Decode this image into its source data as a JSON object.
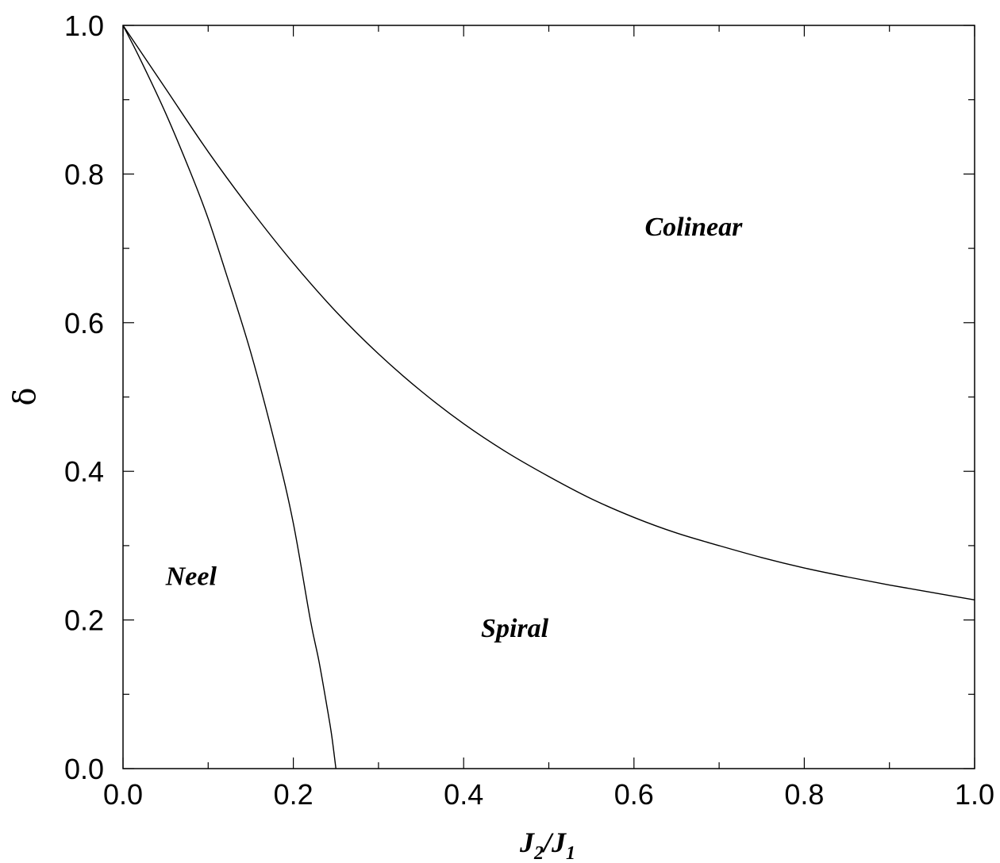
{
  "chart_data": {
    "type": "line",
    "xlabel": {
      "main": "J",
      "sub1": "2",
      "sep": "/J",
      "sub2": "1"
    },
    "ylabel": "δ",
    "xlim": [
      0.0,
      1.0
    ],
    "ylim": [
      0.0,
      1.0
    ],
    "x_ticks": [
      "0.0",
      "0.2",
      "0.4",
      "0.6",
      "0.8",
      "1.0"
    ],
    "y_ticks": [
      "0.0",
      "0.2",
      "0.4",
      "0.6",
      "0.8",
      "1.0"
    ],
    "minor_ticks_per_interval": 1,
    "grid": false,
    "series": [
      {
        "x": [
          0.0,
          0.02,
          0.05,
          0.08,
          0.1,
          0.12,
          0.15,
          0.18,
          0.2,
          0.22,
          0.23,
          0.24,
          0.245,
          0.25
        ],
        "y": [
          1.0,
          0.955,
          0.882,
          0.8,
          0.74,
          0.67,
          0.56,
          0.43,
          0.33,
          0.2,
          0.145,
          0.08,
          0.045,
          0.0
        ]
      },
      {
        "x": [
          0.0,
          0.05,
          0.1,
          0.15,
          0.2,
          0.25,
          0.3,
          0.35,
          0.4,
          0.45,
          0.5,
          0.55,
          0.6,
          0.65,
          0.7,
          0.75,
          0.8,
          0.85,
          0.9,
          0.95,
          1.0
        ],
        "y": [
          1.0,
          0.915,
          0.83,
          0.752,
          0.68,
          0.615,
          0.558,
          0.508,
          0.464,
          0.426,
          0.393,
          0.363,
          0.338,
          0.317,
          0.3,
          0.284,
          0.27,
          0.258,
          0.247,
          0.237,
          0.227
        ]
      }
    ],
    "annotations": [
      {
        "text": "Colinear",
        "x": 0.67,
        "y": 0.73
      },
      {
        "text": "Neel",
        "x": 0.08,
        "y": 0.26
      },
      {
        "text": "Spiral",
        "x": 0.46,
        "y": 0.19
      }
    ]
  }
}
